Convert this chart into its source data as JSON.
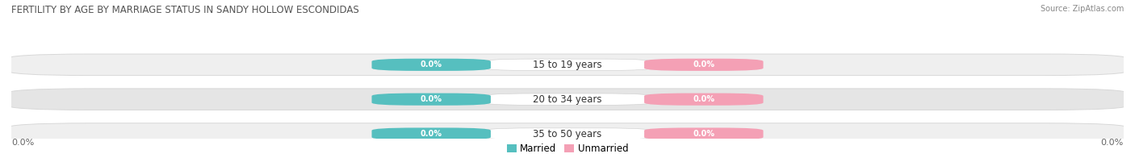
{
  "title": "FERTILITY BY AGE BY MARRIAGE STATUS IN SANDY HOLLOW ESCONDIDAS",
  "source": "Source: ZipAtlas.com",
  "age_groups": [
    "15 to 19 years",
    "20 to 34 years",
    "35 to 50 years"
  ],
  "married_values": [
    0.0,
    0.0,
    0.0
  ],
  "unmarried_values": [
    0.0,
    0.0,
    0.0
  ],
  "married_color": "#56BFBF",
  "unmarried_color": "#F4A0B5",
  "row_bg_colors": [
    "#EFEFEF",
    "#E5E5E5",
    "#EFEFEF"
  ],
  "row_edge_color": "#D8D8D8",
  "title_fontsize": 8.5,
  "source_fontsize": 7,
  "bar_label_fontsize": 7,
  "age_label_fontsize": 8.5,
  "axis_tick_fontsize": 8,
  "axis_label_value": "0.0%",
  "figsize": [
    14.06,
    1.96
  ],
  "dpi": 100
}
